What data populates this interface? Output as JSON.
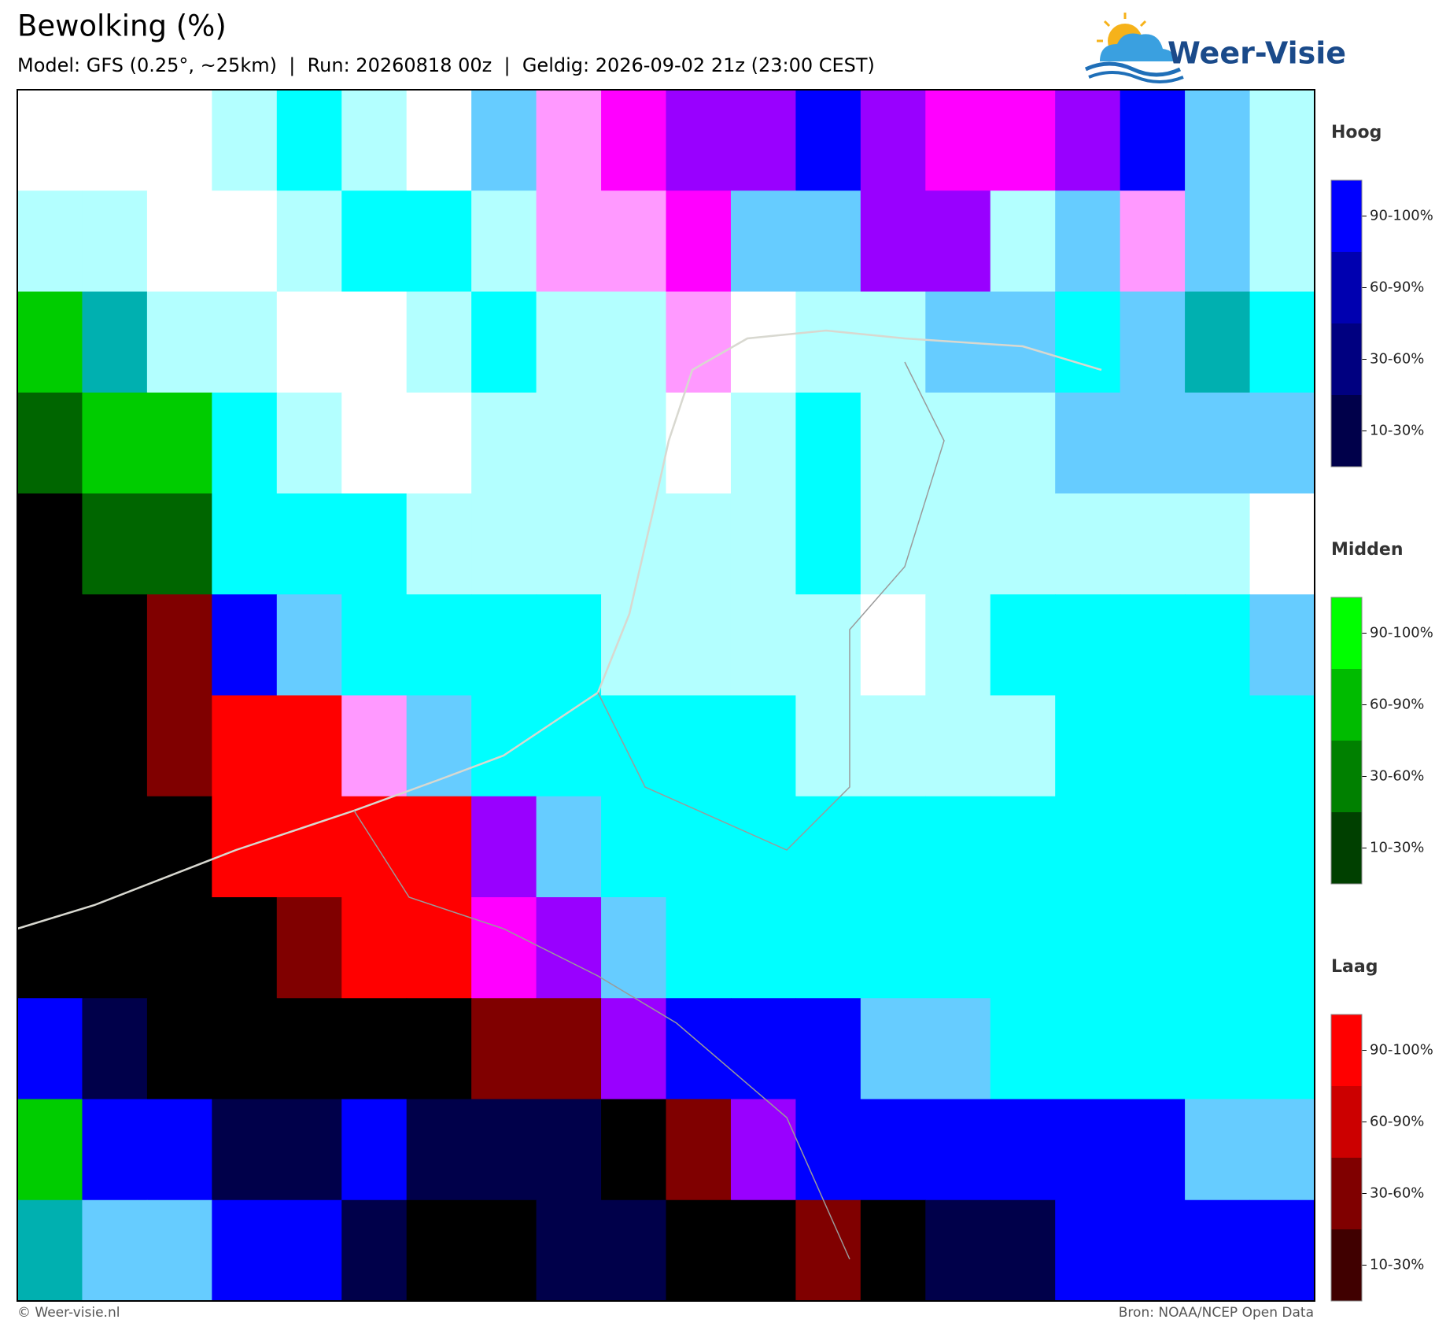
{
  "header": {
    "title": "Bewolking (%)",
    "subtitle": "Model: GFS (0.25°, ~25km)  |  Run: 20260818 00z  |  Geldig: 2026-09-02 21z (23:00 CEST)",
    "logo": "Weer-Visie"
  },
  "legend": [
    {
      "title": "Hoog",
      "items": [
        {
          "label": "90-100%",
          "color": "#0000ff"
        },
        {
          "label": "60-90%",
          "color": "#0000b0"
        },
        {
          "label": "30-60%",
          "color": "#000080"
        },
        {
          "label": "10-30%",
          "color": "#00004a"
        }
      ]
    },
    {
      "title": "Midden",
      "items": [
        {
          "label": "90-100%",
          "color": "#00ff00"
        },
        {
          "label": "60-90%",
          "color": "#00bb00"
        },
        {
          "label": "30-60%",
          "color": "#008000"
        },
        {
          "label": "10-30%",
          "color": "#004000"
        }
      ]
    },
    {
      "title": "Laag",
      "items": [
        {
          "label": "90-100%",
          "color": "#ff0000"
        },
        {
          "label": "60-90%",
          "color": "#cc0000"
        },
        {
          "label": "30-60%",
          "color": "#800000"
        },
        {
          "label": "10-30%",
          "color": "#400000"
        }
      ]
    }
  ],
  "footer": {
    "left": "© Weer-visie.nl",
    "right": "Bron: NOAA/NCEP Open Data"
  }
}
